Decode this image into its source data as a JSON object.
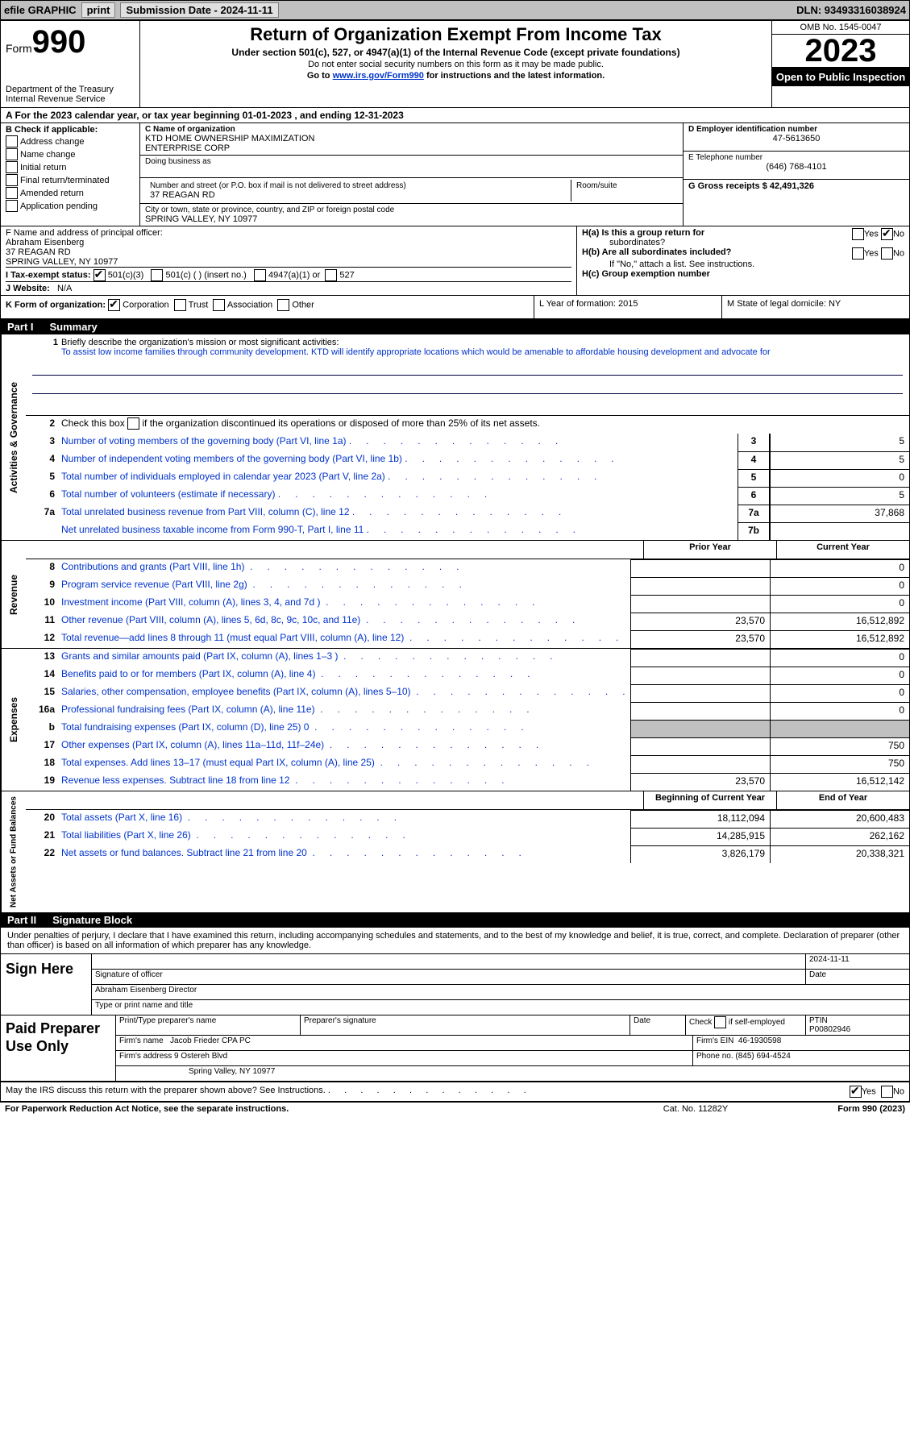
{
  "topbar": {
    "efile": "efile GRAPHIC",
    "print": "print",
    "submission": "Submission Date - 2024-11-11",
    "dln": "DLN: 93493316038924"
  },
  "header": {
    "form_word": "Form",
    "form_num": "990",
    "dept": "Department of the Treasury\nInternal Revenue Service",
    "title": "Return of Organization Exempt From Income Tax",
    "subtitle": "Under section 501(c), 527, or 4947(a)(1) of the Internal Revenue Code (except private foundations)",
    "note1": "Do not enter social security numbers on this form as it may be made public.",
    "note2_pre": "Go to ",
    "note2_link": "www.irs.gov/Form990",
    "note2_post": " for instructions and the latest information.",
    "omb": "OMB No. 1545-0047",
    "year": "2023",
    "open": "Open to Public Inspection"
  },
  "rowA": "A  For the 2023 calendar year, or tax year beginning 01-01-2023   , and ending 12-31-2023",
  "colB": {
    "title": "B Check if applicable:",
    "opts": [
      "Address change",
      "Name change",
      "Initial return",
      "Final return/terminated",
      "Amended return",
      "Application pending"
    ]
  },
  "colC": {
    "c_label": "C Name of organization",
    "org1": "KTD HOME OWNERSHIP MAXIMIZATION",
    "org2": "ENTERPRISE CORP",
    "dba_label": "Doing business as",
    "addr_label": "Number and street (or P.O. box if mail is not delivered to street address)",
    "room_label": "Room/suite",
    "street": "37 REAGAN RD",
    "city_label": "City or town, state or province, country, and ZIP or foreign postal code",
    "city": "SPRING VALLEY, NY  10977"
  },
  "colD": {
    "d_label": "D Employer identification number",
    "ein": "47-5613650",
    "e_label": "E Telephone number",
    "phone": "(646) 768-4101",
    "g_label": "G Gross receipts $ 42,491,326"
  },
  "rowF": {
    "f_label": "F  Name and address of principal officer:",
    "name": "Abraham Eisenberg",
    "addr1": "37 REAGAN RD",
    "addr2": "SPRING VALLEY, NY  10977",
    "i_label": "I  Tax-exempt status:",
    "i_501c3": "501(c)(3)",
    "i_501c": "501(c) (  ) (insert no.)",
    "i_4947": "4947(a)(1) or",
    "i_527": "527",
    "j_label": "J  Website:",
    "j_val": "N/A"
  },
  "rowH": {
    "ha": "H(a)  Is this a group return for",
    "ha2": "subordinates?",
    "hb": "H(b)  Are all subordinates included?",
    "hb2": "If \"No,\" attach a list. See instructions.",
    "hc": "H(c)  Group exemption number",
    "yes": "Yes",
    "no": "No"
  },
  "rowK": {
    "k": "K Form of organization:",
    "corp": "Corporation",
    "trust": "Trust",
    "assoc": "Association",
    "other": "Other",
    "l": "L Year of formation: 2015",
    "m": "M State of legal domicile: NY"
  },
  "part1": {
    "label": "Part I",
    "title": "Summary"
  },
  "mission": {
    "num": "1",
    "label": "Briefly describe the organization's mission or most significant activities:",
    "text": "To assist low income families through community development. KTD will identify appropriate locations which would be amenable to affordable housing development and advocate for"
  },
  "gov_lines": [
    {
      "n": "2",
      "d": "Check this box",
      "d2": " if the organization discontinued its operations or disposed of more than 25% of its net assets.",
      "box": "",
      "val": ""
    },
    {
      "n": "3",
      "d": "Number of voting members of the governing body (Part VI, line 1a)",
      "box": "3",
      "val": "5"
    },
    {
      "n": "4",
      "d": "Number of independent voting members of the governing body (Part VI, line 1b)",
      "box": "4",
      "val": "5"
    },
    {
      "n": "5",
      "d": "Total number of individuals employed in calendar year 2023 (Part V, line 2a)",
      "box": "5",
      "val": "0"
    },
    {
      "n": "6",
      "d": "Total number of volunteers (estimate if necessary)",
      "box": "6",
      "val": "5"
    },
    {
      "n": "7a",
      "d": "Total unrelated business revenue from Part VIII, column (C), line 12",
      "box": "7a",
      "val": "37,868"
    },
    {
      "n": "",
      "d": "Net unrelated business taxable income from Form 990-T, Part I, line 11",
      "box": "7b",
      "val": ""
    }
  ],
  "vlabels": {
    "gov": "Activities & Governance",
    "rev": "Revenue",
    "exp": "Expenses",
    "net": "Net Assets or Fund Balances"
  },
  "twocol": {
    "prior": "Prior Year",
    "current": "Current Year",
    "begin": "Beginning of Current Year",
    "end": "End of Year"
  },
  "rev_lines": [
    {
      "n": "8",
      "d": "Contributions and grants (Part VIII, line 1h)",
      "p": "",
      "c": "0"
    },
    {
      "n": "9",
      "d": "Program service revenue (Part VIII, line 2g)",
      "p": "",
      "c": "0"
    },
    {
      "n": "10",
      "d": "Investment income (Part VIII, column (A), lines 3, 4, and 7d )",
      "p": "",
      "c": "0"
    },
    {
      "n": "11",
      "d": "Other revenue (Part VIII, column (A), lines 5, 6d, 8c, 9c, 10c, and 11e)",
      "p": "23,570",
      "c": "16,512,892"
    },
    {
      "n": "12",
      "d": "Total revenue—add lines 8 through 11 (must equal Part VIII, column (A), line 12)",
      "p": "23,570",
      "c": "16,512,892"
    }
  ],
  "exp_lines": [
    {
      "n": "13",
      "d": "Grants and similar amounts paid (Part IX, column (A), lines 1–3 )",
      "p": "",
      "c": "0"
    },
    {
      "n": "14",
      "d": "Benefits paid to or for members (Part IX, column (A), line 4)",
      "p": "",
      "c": "0"
    },
    {
      "n": "15",
      "d": "Salaries, other compensation, employee benefits (Part IX, column (A), lines 5–10)",
      "p": "",
      "c": "0"
    },
    {
      "n": "16a",
      "d": "Professional fundraising fees (Part IX, column (A), line 11e)",
      "p": "",
      "c": "0"
    },
    {
      "n": "b",
      "d": "Total fundraising expenses (Part IX, column (D), line 25) 0",
      "p": "shade",
      "c": "shade"
    },
    {
      "n": "17",
      "d": "Other expenses (Part IX, column (A), lines 11a–11d, 11f–24e)",
      "p": "",
      "c": "750"
    },
    {
      "n": "18",
      "d": "Total expenses. Add lines 13–17 (must equal Part IX, column (A), line 25)",
      "p": "",
      "c": "750"
    },
    {
      "n": "19",
      "d": "Revenue less expenses. Subtract line 18 from line 12",
      "p": "23,570",
      "c": "16,512,142"
    }
  ],
  "net_lines": [
    {
      "n": "20",
      "d": "Total assets (Part X, line 16)",
      "p": "18,112,094",
      "c": "20,600,483"
    },
    {
      "n": "21",
      "d": "Total liabilities (Part X, line 26)",
      "p": "14,285,915",
      "c": "262,162"
    },
    {
      "n": "22",
      "d": "Net assets or fund balances. Subtract line 21 from line 20",
      "p": "3,826,179",
      "c": "20,338,321"
    }
  ],
  "part2": {
    "label": "Part II",
    "title": "Signature Block",
    "perjury": "Under penalties of perjury, I declare that I have examined this return, including accompanying schedules and statements, and to the best of my knowledge and belief, it is true, correct, and complete. Declaration of preparer (other than officer) is based on all information of which preparer has any knowledge."
  },
  "sign": {
    "here": "Sign Here",
    "date": "2024-11-11",
    "sig_label": "Signature of officer",
    "name": "Abraham Eisenberg  Director",
    "type_label": "Type or print name and title",
    "date_label": "Date"
  },
  "paid": {
    "title": "Paid Preparer Use Only",
    "print_label": "Print/Type preparer's name",
    "sig_label": "Preparer's signature",
    "date_label": "Date",
    "check_label": "Check",
    "self": "if self-employed",
    "ptin_label": "PTIN",
    "ptin": "P00802946",
    "firm_name_label": "Firm's name",
    "firm_name": "Jacob Frieder CPA PC",
    "firm_ein_label": "Firm's EIN",
    "firm_ein": "46-1930598",
    "firm_addr_label": "Firm's address",
    "firm_addr1": "9 Ostereh Blvd",
    "firm_addr2": "Spring Valley, NY  10977",
    "phone_label": "Phone no.",
    "phone": "(845) 694-4524"
  },
  "discuss": {
    "q": "May the IRS discuss this return with the preparer shown above? See Instructions.",
    "yes": "Yes",
    "no": "No"
  },
  "footer": {
    "pra": "For Paperwork Reduction Act Notice, see the separate instructions.",
    "cat": "Cat. No. 11282Y",
    "form": "Form 990 (2023)"
  }
}
